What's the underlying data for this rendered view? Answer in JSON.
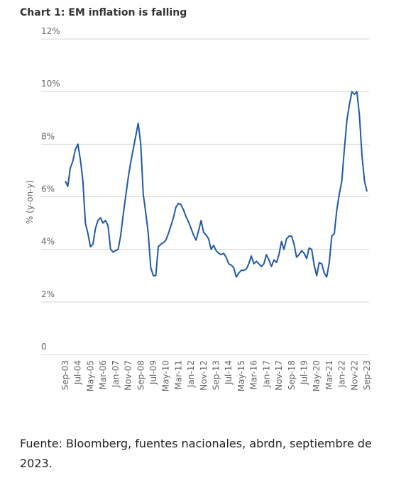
{
  "chart_data": {
    "type": "line",
    "title": "Chart 1: EM inflation is falling",
    "ylabel": "% (y-on-y)",
    "source": "Fuente: Bloomberg, fuentes nacionales, abrdn, septiembre de 2023.",
    "categories": [
      "Sep-03",
      null,
      null,
      null,
      null,
      "Jul-04",
      null,
      null,
      null,
      null,
      "May-05",
      null,
      null,
      null,
      null,
      "Mar-06",
      null,
      null,
      null,
      null,
      "Jan-07",
      null,
      null,
      null,
      null,
      "Nov-07",
      null,
      null,
      null,
      null,
      "Sep-08",
      null,
      null,
      null,
      null,
      "Jul-09",
      null,
      null,
      null,
      null,
      "May-10",
      null,
      null,
      null,
      null,
      "Mar-11",
      null,
      null,
      null,
      null,
      "Jan-12",
      null,
      null,
      null,
      null,
      "Nov-12",
      null,
      null,
      null,
      null,
      "Sep-13",
      null,
      null,
      null,
      null,
      "Jul-14",
      null,
      null,
      null,
      null,
      "May-15",
      null,
      null,
      null,
      null,
      "Mar-16",
      null,
      null,
      null,
      null,
      "Jan-17",
      null,
      null,
      null,
      null,
      "Nov-17",
      null,
      null,
      null,
      null,
      "Sep-18",
      null,
      null,
      null,
      null,
      "Jul-19",
      null,
      null,
      null,
      null,
      "May-20",
      null,
      null,
      null,
      null,
      "Mar-21",
      null,
      null,
      null,
      null,
      "Jan-22",
      null,
      null,
      null,
      null,
      "Nov-22",
      null,
      null,
      null,
      null,
      "Sep-23"
    ],
    "series": [
      {
        "name": "EM inflation",
        "color": "#2059a8",
        "values": [
          6.6,
          6.4,
          7.1,
          7.35,
          7.8,
          8.0,
          7.4,
          6.6,
          5.0,
          4.6,
          4.1,
          4.2,
          4.8,
          5.1,
          5.2,
          5.0,
          5.1,
          4.9,
          4.0,
          3.9,
          3.95,
          4.0,
          4.5,
          5.3,
          6.0,
          6.7,
          7.3,
          7.8,
          8.3,
          8.8,
          8.0,
          6.1,
          5.4,
          4.6,
          3.3,
          3.0,
          3.0,
          4.1,
          4.2,
          4.25,
          4.35,
          4.6,
          4.9,
          5.2,
          5.6,
          5.75,
          5.7,
          5.5,
          5.25,
          5.05,
          4.8,
          4.55,
          4.35,
          4.7,
          5.1,
          4.65,
          4.55,
          4.4,
          4.0,
          4.15,
          3.95,
          3.85,
          3.8,
          3.85,
          3.7,
          3.45,
          3.4,
          3.3,
          2.95,
          3.1,
          3.2,
          3.2,
          3.25,
          3.45,
          3.75,
          3.45,
          3.55,
          3.45,
          3.35,
          3.45,
          3.8,
          3.6,
          3.35,
          3.6,
          3.5,
          3.8,
          4.3,
          4.0,
          4.4,
          4.5,
          4.5,
          4.2,
          3.7,
          3.8,
          3.95,
          3.85,
          3.65,
          4.05,
          4.0,
          3.4,
          3.0,
          3.5,
          3.45,
          3.1,
          2.95,
          3.5,
          4.5,
          4.6,
          5.5,
          6.1,
          6.6,
          7.8,
          8.9,
          9.5,
          10.0,
          9.9,
          10.0,
          9.1,
          7.6,
          6.6,
          6.2
        ]
      }
    ],
    "ylim": [
      0,
      12
    ],
    "yticks": [
      0,
      {
        "value": 2,
        "label": "2%"
      },
      {
        "value": 4,
        "label": "4%"
      },
      {
        "value": 6,
        "label": "6%"
      },
      {
        "value": 8,
        "label": "8%"
      },
      {
        "value": 10,
        "label": "10%"
      },
      {
        "value": 12,
        "label": "12%"
      }
    ],
    "grid": true
  }
}
